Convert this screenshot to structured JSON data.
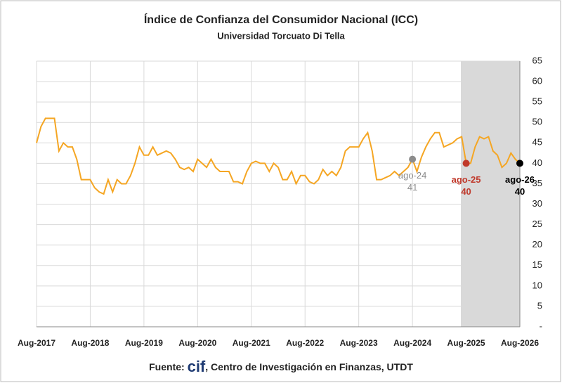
{
  "chart_data": {
    "type": "line",
    "title": "Índice de Confianza del Consumidor Nacional (ICC)",
    "subtitle": "Universidad Torcuato Di Tella",
    "x_start": "2017-08",
    "series": [
      {
        "name": "ICC",
        "color": "#f5a623",
        "values": [
          45,
          49,
          51,
          51,
          51,
          43,
          45,
          44,
          44,
          41,
          36,
          36,
          36,
          34,
          33,
          32.5,
          36,
          33,
          36,
          35,
          35,
          37,
          40,
          44,
          42,
          42,
          44,
          42,
          42.5,
          43,
          42.5,
          41,
          39,
          38.5,
          39,
          38,
          41,
          40,
          39,
          41,
          39,
          38,
          38,
          38,
          35.5,
          35.5,
          35,
          38,
          40,
          40.5,
          40,
          40,
          38,
          40,
          39,
          36,
          36,
          38,
          35,
          37,
          37,
          35.5,
          35,
          36,
          38.5,
          37,
          38,
          37,
          39,
          43,
          44,
          44,
          44,
          46,
          47.5,
          43,
          36,
          36,
          36.5,
          37,
          38,
          37,
          38,
          39,
          41,
          38,
          41.5,
          44,
          46,
          47.5,
          47.5,
          44,
          44.5,
          45,
          46,
          46.5,
          40,
          40,
          44,
          46.5,
          46,
          46.5,
          43,
          42,
          39,
          40,
          42.5,
          41,
          40
        ]
      }
    ],
    "xticks": [
      {
        "value": "2017-08",
        "label": "Aug-2017"
      },
      {
        "value": "2018-08",
        "label": "Aug-2018"
      },
      {
        "value": "2019-08",
        "label": "Aug-2019"
      },
      {
        "value": "2020-08",
        "label": "Aug-2020"
      },
      {
        "value": "2021-08",
        "label": "Aug-2021"
      },
      {
        "value": "2022-08",
        "label": "Aug-2022"
      },
      {
        "value": "2023-08",
        "label": "Aug-2023"
      },
      {
        "value": "2024-08",
        "label": "Aug-2024"
      },
      {
        "value": "2025-08",
        "label": "Aug-2025"
      },
      {
        "value": "2026-08",
        "label": "Aug-2026"
      }
    ],
    "xlim": [
      "2017-08",
      "2026-08"
    ],
    "ylim": [
      0,
      65
    ],
    "yticks": [
      {
        "value": 0,
        "label": "-"
      },
      5,
      10,
      15,
      20,
      25,
      30,
      35,
      40,
      45,
      50,
      55,
      60,
      65
    ],
    "grid": true,
    "annotations": [
      {
        "x": "2024-08",
        "label": "ago-24",
        "value": 41,
        "color": "#8c8c8c"
      },
      {
        "x": "2025-08",
        "label": "ago-25",
        "value": 40,
        "color": "#c0392b"
      },
      {
        "x": "2026-08",
        "label": "ago-26",
        "value": 40,
        "color": "#000000"
      }
    ],
    "source_prefix": "Fuente:",
    "source_brand": "cif",
    "source_rest": ", Centro de Investigación en Finanzas, UTDT"
  }
}
